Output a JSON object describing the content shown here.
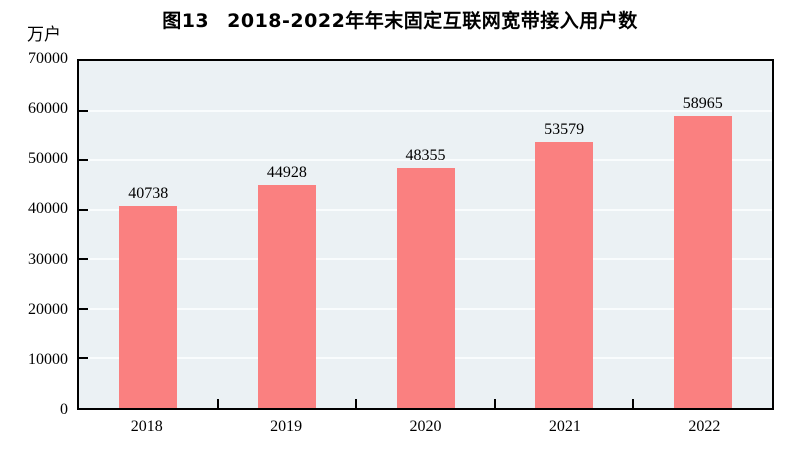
{
  "page": {
    "background_color": "#FFFFFF"
  },
  "chart_data": {
    "type": "bar",
    "figure_label": "图13",
    "title": "2018-2022年年末固定互联网宽带接入用户数",
    "unit_label": "万户",
    "xlabel": "",
    "ylabel": "万户",
    "categories": [
      "2018",
      "2019",
      "2020",
      "2021",
      "2022"
    ],
    "values": [
      40738,
      44928,
      48355,
      53579,
      58965
    ],
    "data_labels": [
      "40738",
      "44928",
      "48355",
      "53579",
      "58965"
    ],
    "ylim": [
      0,
      70000
    ],
    "y_tick_step": 10000,
    "y_tick_labels": [
      "0",
      "10000",
      "20000",
      "30000",
      "40000",
      "50000",
      "60000",
      "70000"
    ],
    "grid": "horizontal",
    "legend": "none",
    "colors": {
      "bar": "#FA8080",
      "plot_background": "#EBF1F4",
      "gridline": "#F9FCFD",
      "axis": "#000000",
      "text": "#000000"
    }
  }
}
